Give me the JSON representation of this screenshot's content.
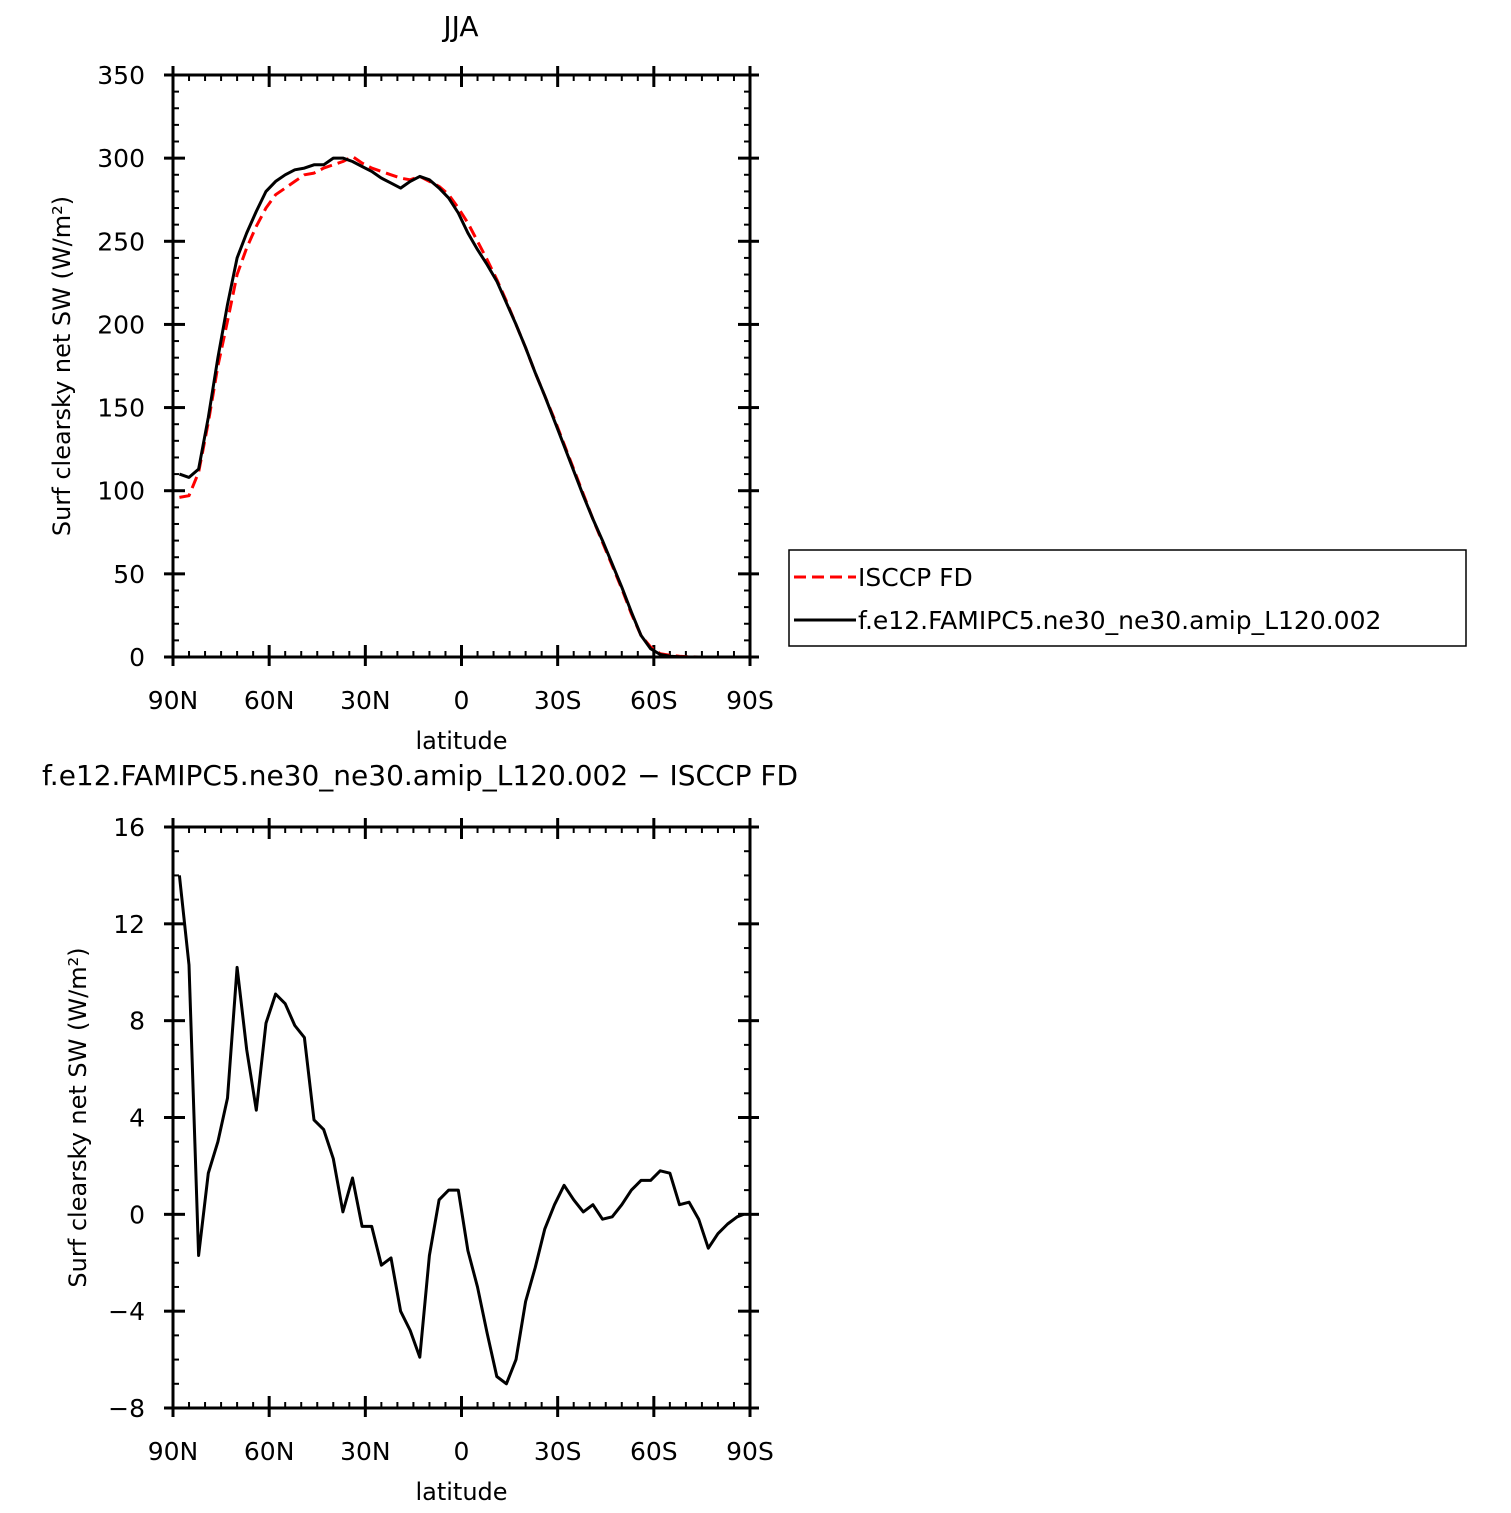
{
  "chart_data": [
    {
      "type": "line",
      "title": "JJA",
      "xlabel": "latitude",
      "ylabel": "Surf clearsky net SW (W/m²)",
      "xlim": [
        90,
        -90
      ],
      "ylim": [
        0,
        350
      ],
      "xticks": [
        {
          "value": 90,
          "label": "90N"
        },
        {
          "value": 60,
          "label": "60N"
        },
        {
          "value": 30,
          "label": "30N"
        },
        {
          "value": 0,
          "label": "0"
        },
        {
          "value": -30,
          "label": "30S"
        },
        {
          "value": -60,
          "label": "60S"
        },
        {
          "value": -90,
          "label": "90S"
        }
      ],
      "yticks": [
        0,
        50,
        100,
        150,
        200,
        250,
        300,
        350
      ],
      "legend": "right",
      "series": [
        {
          "name": "ISCCP FD",
          "color": "#ff0000",
          "dash": "dashed",
          "x": [
            88,
            85,
            82,
            79,
            76,
            73,
            70,
            67,
            64,
            61,
            58,
            55,
            52,
            49,
            46,
            43,
            40,
            37,
            34,
            31,
            28,
            25,
            22,
            19,
            16,
            13,
            10,
            7,
            4,
            1,
            -2,
            -5,
            -8,
            -11,
            -14,
            -17,
            -20,
            -23,
            -26,
            -29,
            -32,
            -35,
            -38,
            -41,
            -44,
            -47,
            -50,
            -53,
            -56,
            -59,
            -62,
            -65,
            -68,
            -71,
            -74,
            -77,
            -80,
            -83,
            -86,
            -88
          ],
          "y": [
            96,
            97,
            111,
            141,
            175,
            202,
            230,
            246,
            259,
            270,
            278,
            282,
            286,
            290,
            291,
            294,
            296,
            298,
            301,
            297,
            294,
            292,
            290,
            288,
            287,
            289,
            286,
            283,
            278,
            270,
            261,
            250,
            239,
            227,
            214,
            200,
            186,
            171,
            157,
            143,
            128,
            113,
            98,
            83,
            69,
            55,
            41,
            26,
            13,
            6,
            2,
            1,
            0.4,
            0.1,
            0,
            0,
            0,
            0,
            0,
            0
          ]
        },
        {
          "name": "f.e12.FAMIPC5.ne30_ne30.amip_L120.002",
          "color": "#000000",
          "dash": "solid",
          "x": [
            88,
            85,
            82,
            79,
            76,
            73,
            70,
            67,
            64,
            61,
            58,
            55,
            52,
            49,
            46,
            43,
            40,
            37,
            34,
            31,
            28,
            25,
            22,
            19,
            16,
            13,
            10,
            7,
            4,
            1,
            -2,
            -5,
            -8,
            -11,
            -14,
            -17,
            -20,
            -23,
            -26,
            -29,
            -32,
            -35,
            -38,
            -41,
            -44,
            -47,
            -50,
            -53,
            -56,
            -59,
            -62,
            -65,
            -68,
            -71,
            -74,
            -77,
            -80,
            -83,
            -86,
            -88
          ],
          "y": [
            110,
            108,
            113,
            144,
            180,
            212,
            240,
            255,
            268,
            280,
            286,
            290,
            293,
            294,
            296,
            296,
            300,
            300,
            298,
            295,
            292,
            288,
            285,
            282,
            286,
            289,
            287,
            282,
            276,
            267,
            255,
            245,
            236,
            226,
            213,
            200,
            186,
            171,
            157,
            142,
            127,
            112,
            97,
            83,
            70,
            56,
            42,
            27,
            13,
            5,
            1.5,
            0.5,
            0.1,
            0,
            0,
            0,
            0,
            0,
            0,
            0
          ]
        }
      ]
    },
    {
      "type": "line",
      "title": "f.e12.FAMIPC5.ne30_ne30.amip_L120.002 − ISCCP FD",
      "xlabel": "latitude",
      "ylabel": "Surf clearsky net SW (W/m²)",
      "xlim": [
        90,
        -90
      ],
      "ylim": [
        -8,
        16
      ],
      "xticks": [
        {
          "value": 90,
          "label": "90N"
        },
        {
          "value": 60,
          "label": "60N"
        },
        {
          "value": 30,
          "label": "30N"
        },
        {
          "value": 0,
          "label": "0"
        },
        {
          "value": -30,
          "label": "30S"
        },
        {
          "value": -60,
          "label": "60S"
        },
        {
          "value": -90,
          "label": "90S"
        }
      ],
      "yticks": [
        -8,
        -4,
        0,
        4,
        8,
        12,
        16
      ],
      "series": [
        {
          "color": "#000000",
          "dash": "solid",
          "x": [
            88,
            85,
            82,
            79,
            76,
            73,
            70,
            67,
            64,
            61,
            58,
            55,
            52,
            49,
            46,
            43,
            40,
            37,
            34,
            31,
            28,
            25,
            22,
            19,
            16,
            13,
            10,
            7,
            4,
            1,
            -2,
            -5,
            -8,
            -11,
            -14,
            -17,
            -20,
            -23,
            -26,
            -29,
            -32,
            -35,
            -38,
            -41,
            -44,
            -47,
            -50,
            -53,
            -56,
            -59,
            -62,
            -65,
            -68,
            -71,
            -74,
            -77,
            -80,
            -83,
            -86,
            -88
          ],
          "y": [
            14.0,
            10.3,
            -1.7,
            1.7,
            3.0,
            4.8,
            10.2,
            6.8,
            4.3,
            7.9,
            9.1,
            8.7,
            7.8,
            7.3,
            3.9,
            3.5,
            2.3,
            0.1,
            1.5,
            -0.5,
            -0.5,
            -2.1,
            -1.8,
            -4.0,
            -4.8,
            -5.9,
            -1.7,
            0.6,
            1.0,
            1.0,
            -1.5,
            -3.0,
            -4.9,
            -6.7,
            -7.0,
            -6.0,
            -3.6,
            -2.2,
            -0.6,
            0.4,
            1.2,
            0.6,
            0.1,
            0.4,
            -0.2,
            -0.1,
            0.4,
            1.0,
            1.4,
            1.4,
            1.8,
            1.7,
            0.4,
            0.5,
            -0.2,
            -1.4,
            -0.8,
            -0.4,
            -0.1,
            0.0
          ]
        }
      ]
    }
  ]
}
